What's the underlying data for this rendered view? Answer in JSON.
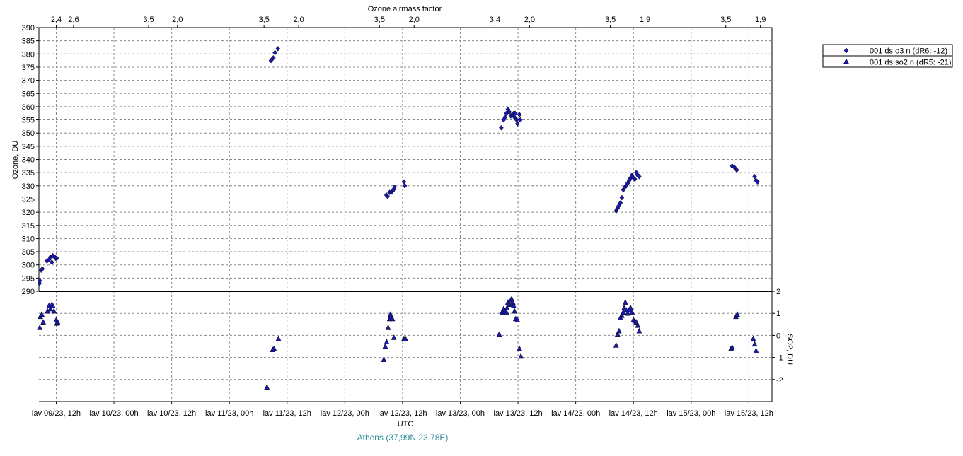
{
  "chart_data": {
    "type": "scatter",
    "top_axis_title": "Ozone airmass factor",
    "top_ticks": [
      {
        "t": 0.0,
        "label": "2,4"
      },
      {
        "t": 0.6,
        "label": "2,6"
      },
      {
        "t": 3.2,
        "label": "3,5"
      },
      {
        "t": 4.2,
        "label": "2,0"
      },
      {
        "t": 7.2,
        "label": "3,5"
      },
      {
        "t": 8.4,
        "label": "2,0"
      },
      {
        "t": 11.2,
        "label": "3,5"
      },
      {
        "t": 12.4,
        "label": "2,0"
      },
      {
        "t": 15.2,
        "label": "3,4"
      },
      {
        "t": 16.4,
        "label": "2,0"
      },
      {
        "t": 19.2,
        "label": "3,5"
      },
      {
        "t": 20.4,
        "label": "1,9"
      },
      {
        "t": 23.2,
        "label": "3,5"
      },
      {
        "t": 24.4,
        "label": "1,9"
      }
    ],
    "x_axis_title": "UTC",
    "x_ticks": [
      {
        "t": 0.0,
        "label": "lav 09/23, 12h"
      },
      {
        "t": 2.0,
        "label": "lav 10/23, 00h"
      },
      {
        "t": 4.0,
        "label": "lav 10/23, 12h"
      },
      {
        "t": 6.0,
        "label": "lav 11/23, 00h"
      },
      {
        "t": 8.0,
        "label": "lav 11/23, 12h"
      },
      {
        "t": 10.0,
        "label": "lav 12/23, 00h"
      },
      {
        "t": 12.0,
        "label": "lav 12/23, 12h"
      },
      {
        "t": 14.0,
        "label": "lav 13/23, 00h"
      },
      {
        "t": 16.0,
        "label": "lav 13/23, 12h"
      },
      {
        "t": 18.0,
        "label": "lav 14/23, 00h"
      },
      {
        "t": 20.0,
        "label": "lav 14/23, 12h"
      },
      {
        "t": 22.0,
        "label": "lav 15/23, 00h"
      },
      {
        "t": 24.0,
        "label": "lav 15/23, 12h"
      }
    ],
    "x_range": [
      -0.6,
      24.8
    ],
    "ozone_ylabel": "Ozone, DU",
    "ozone_ylim": [
      290,
      390
    ],
    "ozone_ticks": [
      290,
      295,
      300,
      305,
      310,
      315,
      320,
      325,
      330,
      335,
      340,
      345,
      350,
      355,
      360,
      365,
      370,
      375,
      380,
      385,
      390
    ],
    "so2_ylabel": "SO2, DU",
    "so2_ylim": [
      -3,
      2
    ],
    "so2_ticks": [
      2,
      1,
      0,
      -1,
      -2
    ],
    "grid": true,
    "legend_position": "top-right",
    "series": [
      {
        "name": "001 ds o3  n (dR6: -12)",
        "marker": "diamond",
        "color": "#1a1ab0",
        "points": [
          [
            -0.58,
            293
          ],
          [
            -0.57,
            294
          ],
          [
            -0.52,
            298
          ],
          [
            -0.48,
            298.5
          ],
          [
            -0.32,
            301.5
          ],
          [
            -0.25,
            302
          ],
          [
            -0.2,
            303
          ],
          [
            -0.15,
            301
          ],
          [
            -0.12,
            303.5
          ],
          [
            -0.05,
            303
          ],
          [
            -0.02,
            302.5
          ],
          [
            0.02,
            302.5
          ],
          [
            7.44,
            377.5
          ],
          [
            7.52,
            378.5
          ],
          [
            7.58,
            380.5
          ],
          [
            7.68,
            382
          ],
          [
            11.44,
            326.5
          ],
          [
            11.48,
            326
          ],
          [
            11.55,
            327.5
          ],
          [
            11.6,
            327.5
          ],
          [
            11.65,
            328
          ],
          [
            11.68,
            328.5
          ],
          [
            11.72,
            329.5
          ],
          [
            12.05,
            331.5
          ],
          [
            12.08,
            330
          ],
          [
            15.42,
            352
          ],
          [
            15.5,
            355
          ],
          [
            15.55,
            356
          ],
          [
            15.6,
            357.5
          ],
          [
            15.65,
            359
          ],
          [
            15.7,
            358
          ],
          [
            15.75,
            356.5
          ],
          [
            15.8,
            357
          ],
          [
            15.85,
            357.5
          ],
          [
            15.88,
            356
          ],
          [
            15.9,
            357.5
          ],
          [
            15.95,
            355
          ],
          [
            15.98,
            353.5
          ],
          [
            16.05,
            357
          ],
          [
            16.08,
            355
          ],
          [
            19.4,
            320.5
          ],
          [
            19.45,
            321.5
          ],
          [
            19.5,
            322.5
          ],
          [
            19.55,
            323.5
          ],
          [
            19.6,
            325.5
          ],
          [
            19.65,
            328.5
          ],
          [
            19.7,
            329.5
          ],
          [
            19.75,
            330
          ],
          [
            19.8,
            331
          ],
          [
            19.85,
            332
          ],
          [
            19.9,
            333
          ],
          [
            19.95,
            334
          ],
          [
            20.0,
            333
          ],
          [
            20.05,
            332.5
          ],
          [
            20.1,
            335
          ],
          [
            20.15,
            334
          ],
          [
            20.2,
            333.5
          ],
          [
            23.42,
            337.5
          ],
          [
            23.5,
            337
          ],
          [
            23.58,
            336
          ],
          [
            24.2,
            333.5
          ],
          [
            24.25,
            332
          ],
          [
            24.3,
            331.5
          ]
        ]
      },
      {
        "name": "001 ds so2  n (dR5: -21)",
        "marker": "triangle",
        "color": "#1a1ab0",
        "points": [
          [
            -0.57,
            0.35
          ],
          [
            -0.55,
            0.85
          ],
          [
            -0.5,
            0.95
          ],
          [
            -0.45,
            0.6
          ],
          [
            -0.3,
            1.1
          ],
          [
            -0.25,
            1.35
          ],
          [
            -0.2,
            1.2
          ],
          [
            -0.15,
            1.4
          ],
          [
            -0.12,
            1.35
          ],
          [
            -0.08,
            1.1
          ],
          [
            0.0,
            0.7
          ],
          [
            0.02,
            0.55
          ],
          [
            0.05,
            0.6
          ],
          [
            7.3,
            -2.35
          ],
          [
            7.5,
            -0.65
          ],
          [
            7.55,
            -0.6
          ],
          [
            7.7,
            -0.15
          ],
          [
            11.35,
            -1.1
          ],
          [
            11.4,
            -0.5
          ],
          [
            11.45,
            -0.3
          ],
          [
            11.5,
            0.35
          ],
          [
            11.55,
            0.75
          ],
          [
            11.58,
            0.95
          ],
          [
            11.6,
            0.85
          ],
          [
            11.65,
            0.75
          ],
          [
            11.7,
            -0.1
          ],
          [
            12.05,
            -0.15
          ],
          [
            12.1,
            -0.15
          ],
          [
            15.35,
            0.05
          ],
          [
            15.45,
            1.05
          ],
          [
            15.5,
            1.2
          ],
          [
            15.55,
            1.1
          ],
          [
            15.6,
            1.05
          ],
          [
            15.62,
            1.25
          ],
          [
            15.65,
            1.5
          ],
          [
            15.7,
            1.4
          ],
          [
            15.75,
            1.6
          ],
          [
            15.78,
            1.65
          ],
          [
            15.82,
            1.5
          ],
          [
            15.85,
            1.35
          ],
          [
            15.88,
            1.1
          ],
          [
            15.92,
            0.75
          ],
          [
            15.98,
            0.7
          ],
          [
            16.05,
            -0.6
          ],
          [
            16.1,
            -0.95
          ],
          [
            19.4,
            -0.45
          ],
          [
            19.45,
            0.05
          ],
          [
            19.5,
            0.2
          ],
          [
            19.55,
            0.8
          ],
          [
            19.6,
            0.9
          ],
          [
            19.65,
            1.05
          ],
          [
            19.68,
            1.25
          ],
          [
            19.72,
            1.5
          ],
          [
            19.75,
            1.15
          ],
          [
            19.8,
            1.0
          ],
          [
            19.85,
            1.15
          ],
          [
            19.9,
            1.25
          ],
          [
            19.95,
            1.05
          ],
          [
            20.0,
            0.7
          ],
          [
            20.05,
            0.65
          ],
          [
            20.1,
            0.6
          ],
          [
            20.15,
            0.45
          ],
          [
            20.2,
            0.2
          ],
          [
            23.38,
            -0.6
          ],
          [
            23.42,
            -0.55
          ],
          [
            23.55,
            0.85
          ],
          [
            23.6,
            0.95
          ],
          [
            24.15,
            -0.15
          ],
          [
            24.2,
            -0.4
          ],
          [
            24.25,
            -0.7
          ]
        ]
      }
    ]
  },
  "caption": {
    "text": "Athens (37,99N,23,78E)",
    "color": "#2e8b9a"
  }
}
